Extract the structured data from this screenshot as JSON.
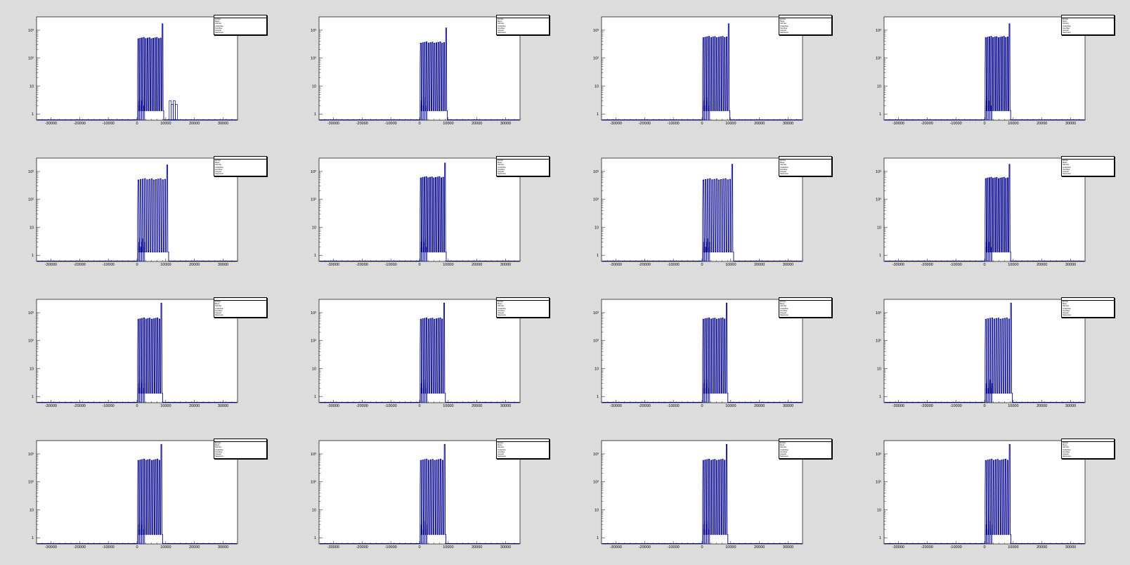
{
  "window": {
    "background": "#dcdcdc"
  },
  "colors": {
    "line": "#00008b",
    "frame": "#000000",
    "plot_bg": "#ffffff"
  },
  "stats_labels": [
    "Entries",
    "Mean",
    "Std Dev",
    "Underflow",
    "Overflow",
    "Integral",
    "Skewness"
  ],
  "chart_data": [
    {
      "type": "line",
      "title": "",
      "stats": [
        "",
        "",
        "",
        "",
        "",
        "",
        ""
      ],
      "xlim": [
        -35000,
        35000
      ],
      "ylim": [
        0.6,
        3000
      ],
      "log_y": true,
      "x_ticks": [
        "-30000",
        "-20000",
        "-10000",
        "0",
        "10000",
        "20000",
        "30000"
      ],
      "y_ticks": [
        "1",
        "10",
        "10²",
        "10³"
      ],
      "grid": false,
      "stats_box": "top-right",
      "teeth": 14,
      "xstart": 200,
      "xend": 9300,
      "peak_y": 550,
      "last_peak_y": 1700,
      "low_y": 1,
      "tail": true
    },
    {
      "type": "line",
      "title": "",
      "stats": [
        "",
        "",
        "",
        "",
        "",
        "",
        ""
      ],
      "xlim": [
        -35000,
        35000
      ],
      "ylim": [
        0.6,
        3000
      ],
      "log_y": true,
      "x_ticks": [
        "-30000",
        "-20000",
        "-10000",
        "0",
        "10000",
        "20000",
        "30000"
      ],
      "y_ticks": [
        "1",
        "10",
        "10²",
        "10³"
      ],
      "grid": false,
      "stats_box": "top-right",
      "teeth": 14,
      "xstart": 200,
      "xend": 9700,
      "peak_y": 380,
      "last_peak_y": 1200,
      "low_y": 1,
      "tail": false
    },
    {
      "type": "line",
      "title": "",
      "stats": [
        "",
        "",
        "",
        "",
        "",
        "",
        ""
      ],
      "xlim": [
        -35000,
        35000
      ],
      "ylim": [
        0.6,
        3000
      ],
      "log_y": true,
      "x_ticks": [
        "-30000",
        "-20000",
        "-10000",
        "0",
        "10000",
        "20000",
        "30000"
      ],
      "y_ticks": [
        "1",
        "10",
        "10²",
        "10³"
      ],
      "grid": false,
      "stats_box": "top-right",
      "teeth": 14,
      "xstart": 200,
      "xend": 9700,
      "peak_y": 600,
      "last_peak_y": 1700,
      "low_y": 1,
      "tail": false
    },
    {
      "type": "line",
      "title": "",
      "stats": [
        "",
        "",
        "",
        "",
        "",
        "",
        ""
      ],
      "xlim": [
        -35000,
        35000
      ],
      "ylim": [
        0.6,
        3000
      ],
      "log_y": true,
      "x_ticks": [
        "-30000",
        "-20000",
        "-10000",
        "0",
        "10000",
        "20000",
        "30000"
      ],
      "y_ticks": [
        "1",
        "10",
        "10²",
        "10³"
      ],
      "grid": false,
      "stats_box": "top-right",
      "teeth": 14,
      "xstart": 200,
      "xend": 9100,
      "peak_y": 600,
      "last_peak_y": 1700,
      "low_y": 1,
      "tail": false
    },
    {
      "type": "line",
      "title": "",
      "stats": [
        "",
        "",
        "",
        "",
        "",
        "",
        ""
      ],
      "xlim": [
        -35000,
        35000
      ],
      "ylim": [
        0.6,
        3000
      ],
      "log_y": true,
      "x_ticks": [
        "-30000",
        "-20000",
        "-10000",
        "0",
        "10000",
        "20000",
        "30000"
      ],
      "y_ticks": [
        "1",
        "10",
        "10²",
        "10³"
      ],
      "grid": false,
      "stats_box": "top-right",
      "teeth": 14,
      "xstart": 200,
      "xend": 11000,
      "peak_y": 550,
      "last_peak_y": 1700,
      "low_y": 1,
      "tail": false
    },
    {
      "type": "line",
      "title": "",
      "stats": [
        "",
        "",
        "",
        "",
        "",
        "",
        ""
      ],
      "xlim": [
        -35000,
        35000
      ],
      "ylim": [
        0.6,
        3000
      ],
      "log_y": true,
      "x_ticks": [
        "-30000",
        "-20000",
        "-10000",
        "0",
        "10000",
        "20000",
        "30000"
      ],
      "y_ticks": [
        "1",
        "10",
        "10²",
        "10³"
      ],
      "grid": false,
      "stats_box": "top-right",
      "teeth": 14,
      "xstart": 200,
      "xend": 9300,
      "peak_y": 650,
      "last_peak_y": 2000,
      "low_y": 1,
      "tail": false
    },
    {
      "type": "line",
      "title": "",
      "stats": [
        "",
        "",
        "",
        "",
        "",
        "",
        ""
      ],
      "xlim": [
        -35000,
        35000
      ],
      "ylim": [
        0.6,
        3000
      ],
      "log_y": true,
      "x_ticks": [
        "-30000",
        "-20000",
        "-10000",
        "0",
        "10000",
        "20000",
        "30000"
      ],
      "y_ticks": [
        "1",
        "10",
        "10²",
        "10³"
      ],
      "grid": false,
      "stats_box": "top-right",
      "teeth": 14,
      "xstart": 200,
      "xend": 11000,
      "peak_y": 550,
      "last_peak_y": 1800,
      "low_y": 1,
      "tail": false
    },
    {
      "type": "line",
      "title": "",
      "stats": [
        "",
        "",
        "",
        "",
        "",
        "",
        ""
      ],
      "xlim": [
        -35000,
        35000
      ],
      "ylim": [
        0.6,
        3000
      ],
      "log_y": true,
      "x_ticks": [
        "-30000",
        "-20000",
        "-10000",
        "0",
        "10000",
        "20000",
        "30000"
      ],
      "y_ticks": [
        "1",
        "10",
        "10²",
        "10³"
      ],
      "grid": false,
      "stats_box": "top-right",
      "teeth": 14,
      "xstart": 200,
      "xend": 9100,
      "peak_y": 620,
      "last_peak_y": 1800,
      "low_y": 1,
      "tail": false
    },
    {
      "type": "line",
      "title": "",
      "stats": [
        "",
        "",
        "",
        "",
        "",
        "",
        ""
      ],
      "xlim": [
        -35000,
        35000
      ],
      "ylim": [
        0.6,
        3000
      ],
      "log_y": true,
      "x_ticks": [
        "-30000",
        "-20000",
        "-10000",
        "0",
        "10000",
        "20000",
        "30000"
      ],
      "y_ticks": [
        "1",
        "10",
        "10²",
        "10³"
      ],
      "grid": false,
      "stats_box": "top-right",
      "teeth": 13,
      "xstart": 200,
      "xend": 8900,
      "peak_y": 650,
      "last_peak_y": 2200,
      "low_y": 1,
      "tail": false
    },
    {
      "type": "line",
      "title": "",
      "stats": [
        "",
        "",
        "",
        "",
        "",
        "",
        ""
      ],
      "xlim": [
        -35000,
        35000
      ],
      "ylim": [
        0.6,
        3000
      ],
      "log_y": true,
      "x_ticks": [
        "-30000",
        "-20000",
        "-10000",
        "0",
        "10000",
        "20000",
        "30000"
      ],
      "y_ticks": [
        "1",
        "10",
        "10²",
        "10³"
      ],
      "grid": false,
      "stats_box": "top-right",
      "teeth": 13,
      "xstart": 200,
      "xend": 9000,
      "peak_y": 650,
      "last_peak_y": 2200,
      "low_y": 1,
      "tail": false
    },
    {
      "type": "line",
      "title": "",
      "stats": [
        "",
        "",
        "",
        "",
        "",
        "",
        ""
      ],
      "xlim": [
        -35000,
        35000
      ],
      "ylim": [
        0.6,
        3000
      ],
      "log_y": true,
      "x_ticks": [
        "-30000",
        "-20000",
        "-10000",
        "0",
        "10000",
        "20000",
        "30000"
      ],
      "y_ticks": [
        "1",
        "10",
        "10²",
        "10³"
      ],
      "grid": false,
      "stats_box": "top-right",
      "teeth": 13,
      "xstart": 200,
      "xend": 9000,
      "peak_y": 650,
      "last_peak_y": 2200,
      "low_y": 1,
      "tail": false
    },
    {
      "type": "line",
      "title": "",
      "stats": [
        "",
        "",
        "",
        "",
        "",
        "",
        ""
      ],
      "xlim": [
        -35000,
        35000
      ],
      "ylim": [
        0.6,
        3000
      ],
      "log_y": true,
      "x_ticks": [
        "-30000",
        "-20000",
        "-10000",
        "0",
        "10000",
        "20000",
        "30000"
      ],
      "y_ticks": [
        "1",
        "10",
        "10²",
        "10³"
      ],
      "grid": false,
      "stats_box": "top-right",
      "teeth": 13,
      "xstart": 200,
      "xend": 9700,
      "peak_y": 650,
      "last_peak_y": 2200,
      "low_y": 1,
      "tail": false
    },
    {
      "type": "line",
      "title": "",
      "stats": [
        "",
        "",
        "",
        "",
        "",
        "",
        ""
      ],
      "xlim": [
        -35000,
        35000
      ],
      "ylim": [
        0.6,
        3000
      ],
      "log_y": true,
      "x_ticks": [
        "-30000",
        "-20000",
        "-10000",
        "0",
        "10000",
        "20000",
        "30000"
      ],
      "y_ticks": [
        "1",
        "10",
        "10²",
        "10³"
      ],
      "grid": false,
      "stats_box": "top-right",
      "teeth": 13,
      "xstart": 200,
      "xend": 8900,
      "peak_y": 650,
      "last_peak_y": 2200,
      "low_y": 1,
      "tail": false
    },
    {
      "type": "line",
      "title": "",
      "stats": [
        "",
        "",
        "",
        "",
        "",
        "",
        ""
      ],
      "xlim": [
        -35000,
        35000
      ],
      "ylim": [
        0.6,
        3000
      ],
      "log_y": true,
      "x_ticks": [
        "-30000",
        "-20000",
        "-10000",
        "0",
        "10000",
        "20000",
        "30000"
      ],
      "y_ticks": [
        "1",
        "10",
        "10²",
        "10³"
      ],
      "grid": false,
      "stats_box": "top-right",
      "teeth": 13,
      "xstart": 200,
      "xend": 9200,
      "peak_y": 650,
      "last_peak_y": 2200,
      "low_y": 1,
      "tail": false
    },
    {
      "type": "line",
      "title": "",
      "stats": [
        "",
        "",
        "",
        "",
        "",
        "",
        ""
      ],
      "xlim": [
        -35000,
        35000
      ],
      "ylim": [
        0.6,
        3000
      ],
      "log_y": true,
      "x_ticks": [
        "-30000",
        "-20000",
        "-10000",
        "0",
        "10000",
        "20000",
        "30000"
      ],
      "y_ticks": [
        "1",
        "10",
        "10²",
        "10³"
      ],
      "grid": false,
      "stats_box": "top-right",
      "teeth": 13,
      "xstart": 200,
      "xend": 9000,
      "peak_y": 650,
      "last_peak_y": 2200,
      "low_y": 1,
      "tail": false
    },
    {
      "type": "line",
      "title": "",
      "stats": [
        "",
        "",
        "",
        "",
        "",
        "",
        ""
      ],
      "xlim": [
        -35000,
        35000
      ],
      "ylim": [
        0.6,
        3000
      ],
      "log_y": true,
      "x_ticks": [
        "-30000",
        "-20000",
        "-10000",
        "0",
        "10000",
        "20000",
        "30000"
      ],
      "y_ticks": [
        "1",
        "10",
        "10²",
        "10³"
      ],
      "grid": false,
      "stats_box": "top-right",
      "teeth": 13,
      "xstart": 200,
      "xend": 9200,
      "peak_y": 650,
      "last_peak_y": 2200,
      "low_y": 1,
      "tail": false
    }
  ]
}
